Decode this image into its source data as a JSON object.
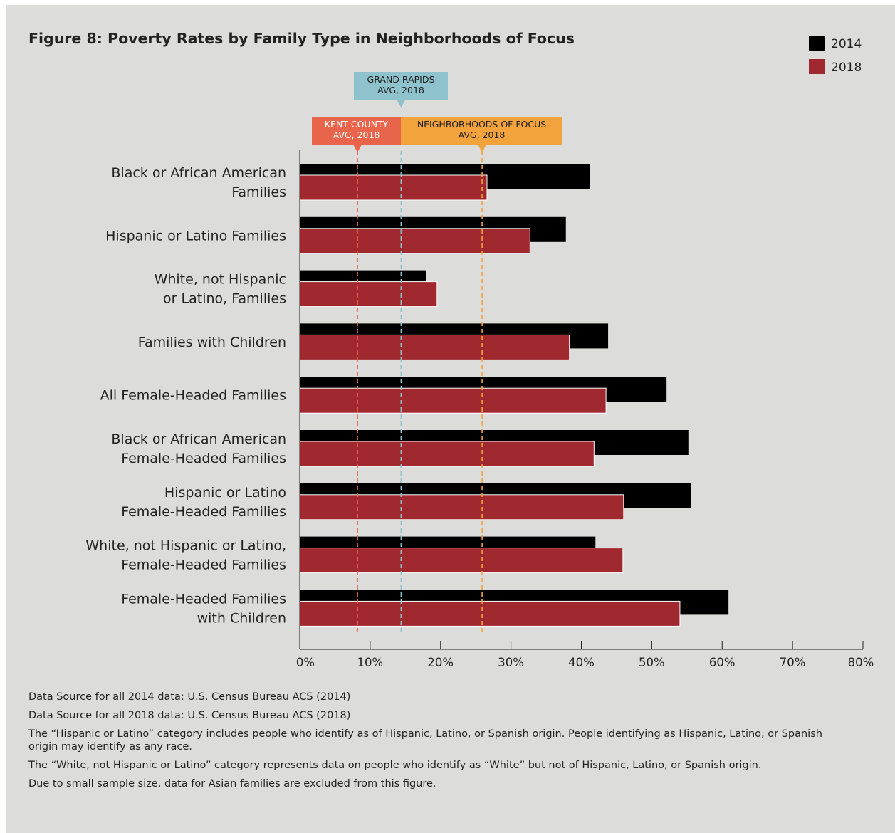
{
  "chart_data": {
    "type": "bar",
    "orientation": "horizontal",
    "title": "Figure 8: Poverty Rates by Family Type in Neighborhoods of Focus",
    "categories": [
      [
        "Black or African American",
        "Families"
      ],
      [
        "Hispanic or Latino Families"
      ],
      [
        "White, not Hispanic",
        "or Latino, Families"
      ],
      [
        "Families with Children"
      ],
      [
        "All Female-Headed Families"
      ],
      [
        "Black or African American",
        "Female-Headed Families"
      ],
      [
        "Hispanic or Latino",
        "Female-Headed Families"
      ],
      [
        "White, not Hispanic or Latino,",
        "Female-Headed Families"
      ],
      [
        "Female-Headed Families",
        "with Children"
      ]
    ],
    "series": [
      {
        "name": "2014",
        "color": "#000000",
        "values": [
          41.2,
          37.8,
          17.9,
          43.8,
          52.1,
          55.2,
          55.6,
          42.0,
          60.9
        ]
      },
      {
        "name": "2018",
        "color": "#a0282f",
        "values": [
          26.6,
          32.7,
          19.5,
          38.3,
          43.5,
          41.8,
          46.0,
          45.9,
          54.0
        ]
      }
    ],
    "xlim": [
      0,
      80
    ],
    "xticks": [
      0,
      10,
      20,
      30,
      40,
      50,
      60,
      70,
      80
    ],
    "xtick_labels": [
      "0%",
      "10%",
      "20%",
      "30%",
      "40%",
      "50%",
      "60%",
      "70%",
      "80%"
    ],
    "legend_position": "top-right",
    "reference_lines": [
      {
        "label": [
          "KENT COUNTY",
          "AVG, 2018"
        ],
        "value": 8.2,
        "color": "#e8644a",
        "text_style": "light"
      },
      {
        "label": [
          "GRAND RAPIDS",
          "AVG, 2018"
        ],
        "value": 14.4,
        "color": "#8ec2cc",
        "text_style": "dark"
      },
      {
        "label": [
          "NEIGHBORHOODS OF FOCUS",
          "AVG, 2018"
        ],
        "value": 25.9,
        "color": "#f3a33c",
        "text_style": "dark"
      }
    ]
  },
  "notes": [
    "Data Source for all 2014 data: U.S. Census Bureau ACS (2014)",
    "Data Source for all 2018 data: U.S. Census Bureau ACS (2018)",
    "The “Hispanic or Latino” category includes people who identify as of Hispanic, Latino, or Spanish origin. People identifying as Hispanic, Latino, or Spanish origin may identify as any race.",
    "The “White, not Hispanic or Latino” category represents data on people who identify as “White” but not of Hispanic, Latino, or Spanish origin.",
    "Due to small sample size, data for Asian families are excluded from this figure."
  ]
}
